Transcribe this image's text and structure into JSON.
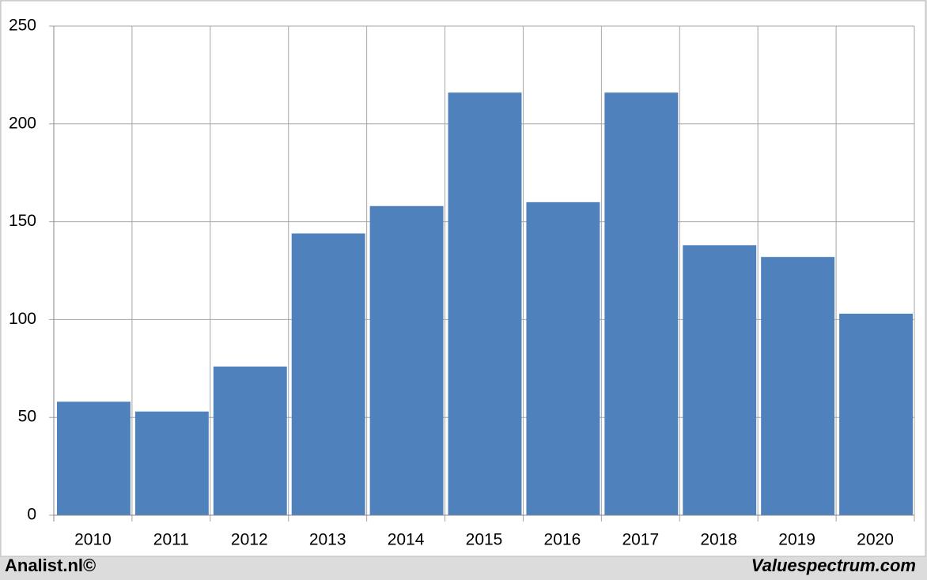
{
  "chart_data": {
    "type": "bar",
    "categories": [
      "2010",
      "2011",
      "2012",
      "2013",
      "2014",
      "2015",
      "2016",
      "2017",
      "2018",
      "2019",
      "2020"
    ],
    "values": [
      58,
      53,
      76,
      144,
      158,
      216,
      160,
      216,
      138,
      132,
      103
    ],
    "color": "#4f81bd",
    "ylim": [
      0,
      250
    ],
    "yticks": [
      0,
      50,
      100,
      150,
      200,
      250
    ],
    "grid": true,
    "source_left": "Analist.nl©",
    "source_right": "Valuespectrum.com"
  }
}
